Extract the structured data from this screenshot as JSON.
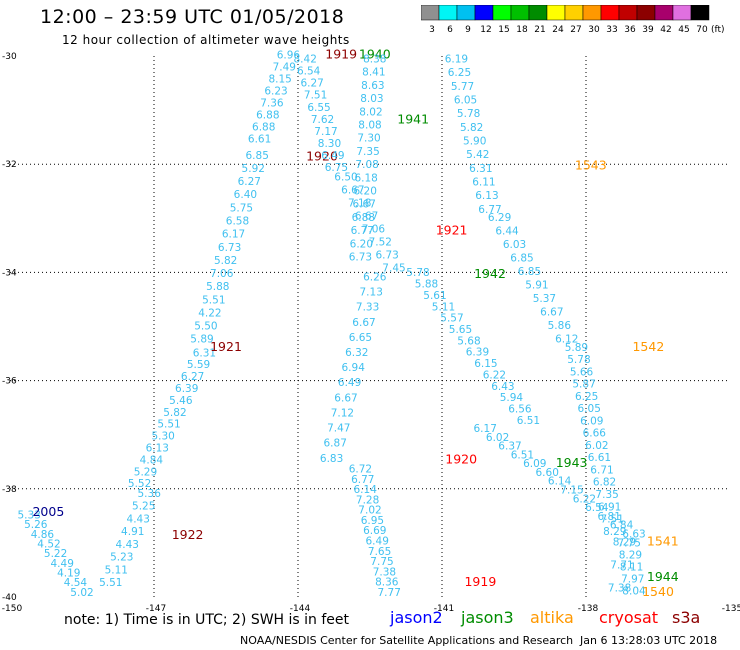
{
  "header": {
    "title": "12:00 – 23:59 UTC 01/05/2018",
    "subtitle": "12 hour collection of altimeter wave heights"
  },
  "colorbar": {
    "unit": "(ft)",
    "bins": [
      {
        "label": "3",
        "color": "#909090"
      },
      {
        "label": "6",
        "color": "#00f5f5"
      },
      {
        "label": "9",
        "color": "#00c0f0"
      },
      {
        "label": "12",
        "color": "#0000ff"
      },
      {
        "label": "15",
        "color": "#00ff00"
      },
      {
        "label": "18",
        "color": "#00c000"
      },
      {
        "label": "21",
        "color": "#008c00"
      },
      {
        "label": "24",
        "color": "#ffff00"
      },
      {
        "label": "27",
        "color": "#ffd000"
      },
      {
        "label": "30",
        "color": "#ff9800"
      },
      {
        "label": "33",
        "color": "#ff0000"
      },
      {
        "label": "36",
        "color": "#c00000"
      },
      {
        "label": "39",
        "color": "#8c0000"
      },
      {
        "label": "42",
        "color": "#a8006c"
      },
      {
        "label": "45",
        "color": "#e070e0"
      },
      {
        "label": "70",
        "color": "#000000"
      }
    ]
  },
  "map": {
    "lon_range": [
      -150,
      -135
    ],
    "lat_range": [
      -40,
      -30
    ],
    "lon_ticks": [
      "-150",
      "-147",
      "-144",
      "-141",
      "-138",
      "-135"
    ],
    "lat_ticks": [
      "-30",
      "-32",
      "-34",
      "-36",
      "-38",
      "-40"
    ],
    "value_color": "#40c0f0",
    "passes": [
      {
        "color": "#00008c",
        "time": "2005",
        "time_at": [
          -149.2,
          -38.5
        ],
        "start": [
          -149.6,
          -38.55
        ],
        "end": [
          -148.5,
          -39.98
        ],
        "values": [
          "5.33",
          "5.26",
          "4.86",
          "4.52",
          "5.22",
          "4.49",
          "4.19",
          "4.54",
          "5.02"
        ]
      },
      {
        "color": "#8c0000",
        "time": "1922",
        "time_at": [
          -146.3,
          -38.93
        ],
        "start": [
          -147.1,
          -38.15
        ],
        "end": [
          -147.9,
          -39.8
        ],
        "values": [
          "5.36",
          "5.25",
          "4.43",
          "4.91",
          "4.43",
          "5.23",
          "5.11",
          "5.51"
        ]
      },
      {
        "color": "#8c0000",
        "time": "1921",
        "time_at": [
          -145.5,
          -35.45
        ],
        "start": [
          -145.95,
          -35.55
        ],
        "end": [
          -147.3,
          -37.97
        ],
        "values": [
          "6.31",
          "5.59",
          "6.27",
          "6.39",
          "5.46",
          "5.82",
          "5.51",
          "5.30",
          "6.13",
          "4.84",
          "5.29",
          "5.52"
        ]
      },
      {
        "color": "#8c0000",
        "time": "1920",
        "time_at": [
          -143.5,
          -31.93
        ],
        "start": [
          -144.85,
          -31.9
        ],
        "end": [
          -146.0,
          -35.3
        ],
        "values": [
          "6.85",
          "5.92",
          "6.27",
          "6.40",
          "5.75",
          "6.58",
          "6.17",
          "6.73",
          "5.82",
          "7.06",
          "5.88",
          "5.51",
          "4.22",
          "5.50",
          "5.89"
        ]
      },
      {
        "color": "#8c0000",
        "time": "1919",
        "time_at": [
          -143.1,
          -30.05
        ],
        "start": [
          -144.2,
          -30.05
        ],
        "end": [
          -144.8,
          -31.6
        ],
        "values": [
          "6.96",
          "7.49",
          "8.15",
          "6.23",
          "7.36",
          "6.88",
          "6.88",
          "6.61"
        ]
      },
      {
        "color": "#008c00",
        "time": "1940",
        "time_at": [
          -142.4,
          -30.05
        ],
        "start": [
          -143.85,
          -30.12
        ],
        "end": [
          -143.2,
          -32.13
        ],
        "values": [
          "8.42",
          "6.54",
          "6.27",
          "7.51",
          "6.55",
          "7.62",
          "7.17",
          "8.30",
          "6.49",
          "6.75"
        ]
      },
      {
        "color": "#008c00",
        "time": "1941",
        "time_at": [
          -141.6,
          -31.25
        ],
        "start": [
          -142.4,
          -30.12
        ],
        "end": [
          -142.7,
          -33.78
        ],
        "values": [
          "8.38",
          "8.41",
          "8.63",
          "8.03",
          "8.02",
          "8.08",
          "7.30",
          "7.35",
          "7.08",
          "6.18",
          "6.20",
          "6.67",
          "6.88",
          "6.77",
          "6.20",
          "6.73"
        ]
      },
      {
        "color": "#ff0000",
        "time": "1921",
        "time_at": [
          -140.8,
          -33.3
        ],
        "start": [
          -143.0,
          -32.3
        ],
        "end": [
          -142.0,
          -33.98
        ],
        "values": [
          "6.50",
          "6.67",
          "7.18",
          "6.67",
          "7.06",
          "7.52",
          "6.73",
          "7.45"
        ]
      },
      {
        "color": "#ff0000",
        "time": "1920",
        "time_at": [
          -140.6,
          -37.53
        ],
        "start": [
          -142.4,
          -34.15
        ],
        "end": [
          -143.3,
          -37.5
        ],
        "values": [
          "6.26",
          "7.13",
          "7.33",
          "6.67",
          "6.65",
          "6.32",
          "6.94",
          "6.49",
          "6.67",
          "7.12",
          "7.47",
          "6.87",
          "6.83"
        ]
      },
      {
        "color": "#ff0000",
        "time": "1919",
        "time_at": [
          -140.2,
          -39.8
        ],
        "start": [
          -142.7,
          -37.7
        ],
        "end": [
          -142.1,
          -39.98
        ],
        "values": [
          "6.72",
          "6.77",
          "6.14",
          "7.28",
          "7.02",
          "6.95",
          "6.69",
          "6.49",
          "7.65",
          "7.75",
          "7.38",
          "8.36",
          "7.77"
        ]
      },
      {
        "color": "#008c00",
        "time": "1942",
        "time_at": [
          -140.0,
          -34.1
        ],
        "start": [
          -141.5,
          -34.07
        ],
        "end": [
          -139.2,
          -36.8
        ],
        "values": [
          "5.78",
          "5.88",
          "5.61",
          "5.11",
          "5.57",
          "5.65",
          "5.68",
          "6.39",
          "6.15",
          "6.22",
          "6.43",
          "5.94",
          "6.56",
          "6.51"
        ]
      },
      {
        "color": "#008c00",
        "time": "1943",
        "time_at": [
          -138.3,
          -37.6
        ],
        "start": [
          -140.1,
          -36.95
        ],
        "end": [
          -137.0,
          -38.9
        ],
        "values": [
          "6.17",
          "6.02",
          "6.37",
          "6.51",
          "6.09",
          "6.60",
          "6.14",
          "7.15",
          "6.22",
          "6.54",
          "6.81",
          "6.84",
          "6.63"
        ]
      },
      {
        "color": "#008c00",
        "time": "1944",
        "time_at": [
          -136.4,
          -39.7
        ],
        "start": [
          -137.1,
          -39.07
        ],
        "end": [
          -137.0,
          -39.95
        ],
        "values": [
          "7.75",
          "8.29",
          "8.11",
          "7.97",
          "8.04"
        ]
      },
      {
        "color": "#ff9800",
        "time": "1543",
        "time_at": [
          -137.9,
          -32.1
        ],
        "start": [
          -140.7,
          -30.12
        ],
        "end": [
          -140.0,
          -32.9
        ],
        "values": [
          "6.19",
          "6.25",
          "5.77",
          "6.05",
          "5.78",
          "5.82",
          "5.90",
          "5.42",
          "6.31",
          "6.11",
          "6.13",
          "6.77"
        ]
      },
      {
        "color": "#ff9800",
        "time": "1542",
        "time_at": [
          -136.7,
          -35.45
        ],
        "start": [
          -139.8,
          -33.05
        ],
        "end": [
          -138.4,
          -35.3
        ],
        "values": [
          "6.29",
          "6.44",
          "6.03",
          "6.85",
          "6.85",
          "5.91",
          "5.37",
          "6.67",
          "5.86",
          "6.12"
        ]
      },
      {
        "color": "#ff9800",
        "time": "1541",
        "time_at": [
          -136.4,
          -39.05
        ],
        "start": [
          -138.2,
          -35.45
        ],
        "end": [
          -137.4,
          -38.85
        ],
        "values": [
          "5.89",
          "5.78",
          "5.66",
          "5.87",
          "6.25",
          "6.05",
          "6.09",
          "6.66",
          "6.02",
          "6.61",
          "6.71",
          "6.82",
          "7.35",
          "6.91",
          "7.51",
          "8.29"
        ]
      },
      {
        "color": "#ff9800",
        "time": "1540",
        "time_at": [
          -136.5,
          -39.98
        ],
        "start": [
          -137.2,
          -39.05
        ],
        "end": [
          -137.3,
          -39.9
        ],
        "values": [
          "8.29",
          "7.71",
          "7.38"
        ]
      }
    ]
  },
  "footer": {
    "note": "note: 1) Time is in UTC; 2) SWH is in feet",
    "satellites": [
      {
        "name": "jason2",
        "color": "#0000ff",
        "x": 390
      },
      {
        "name": "jason3",
        "color": "#008c00",
        "x": 461
      },
      {
        "name": "altika",
        "color": "#ff9800",
        "x": 530
      },
      {
        "name": "cryosat",
        "color": "#ff0000",
        "x": 599
      },
      {
        "name": "s3a",
        "color": "#8c0000",
        "x": 672
      }
    ],
    "credit": "NOAA/NESDIS Center for Satellite Applications and Research",
    "timestamp": "Jan  6 13:28:03 UTC 2018"
  }
}
